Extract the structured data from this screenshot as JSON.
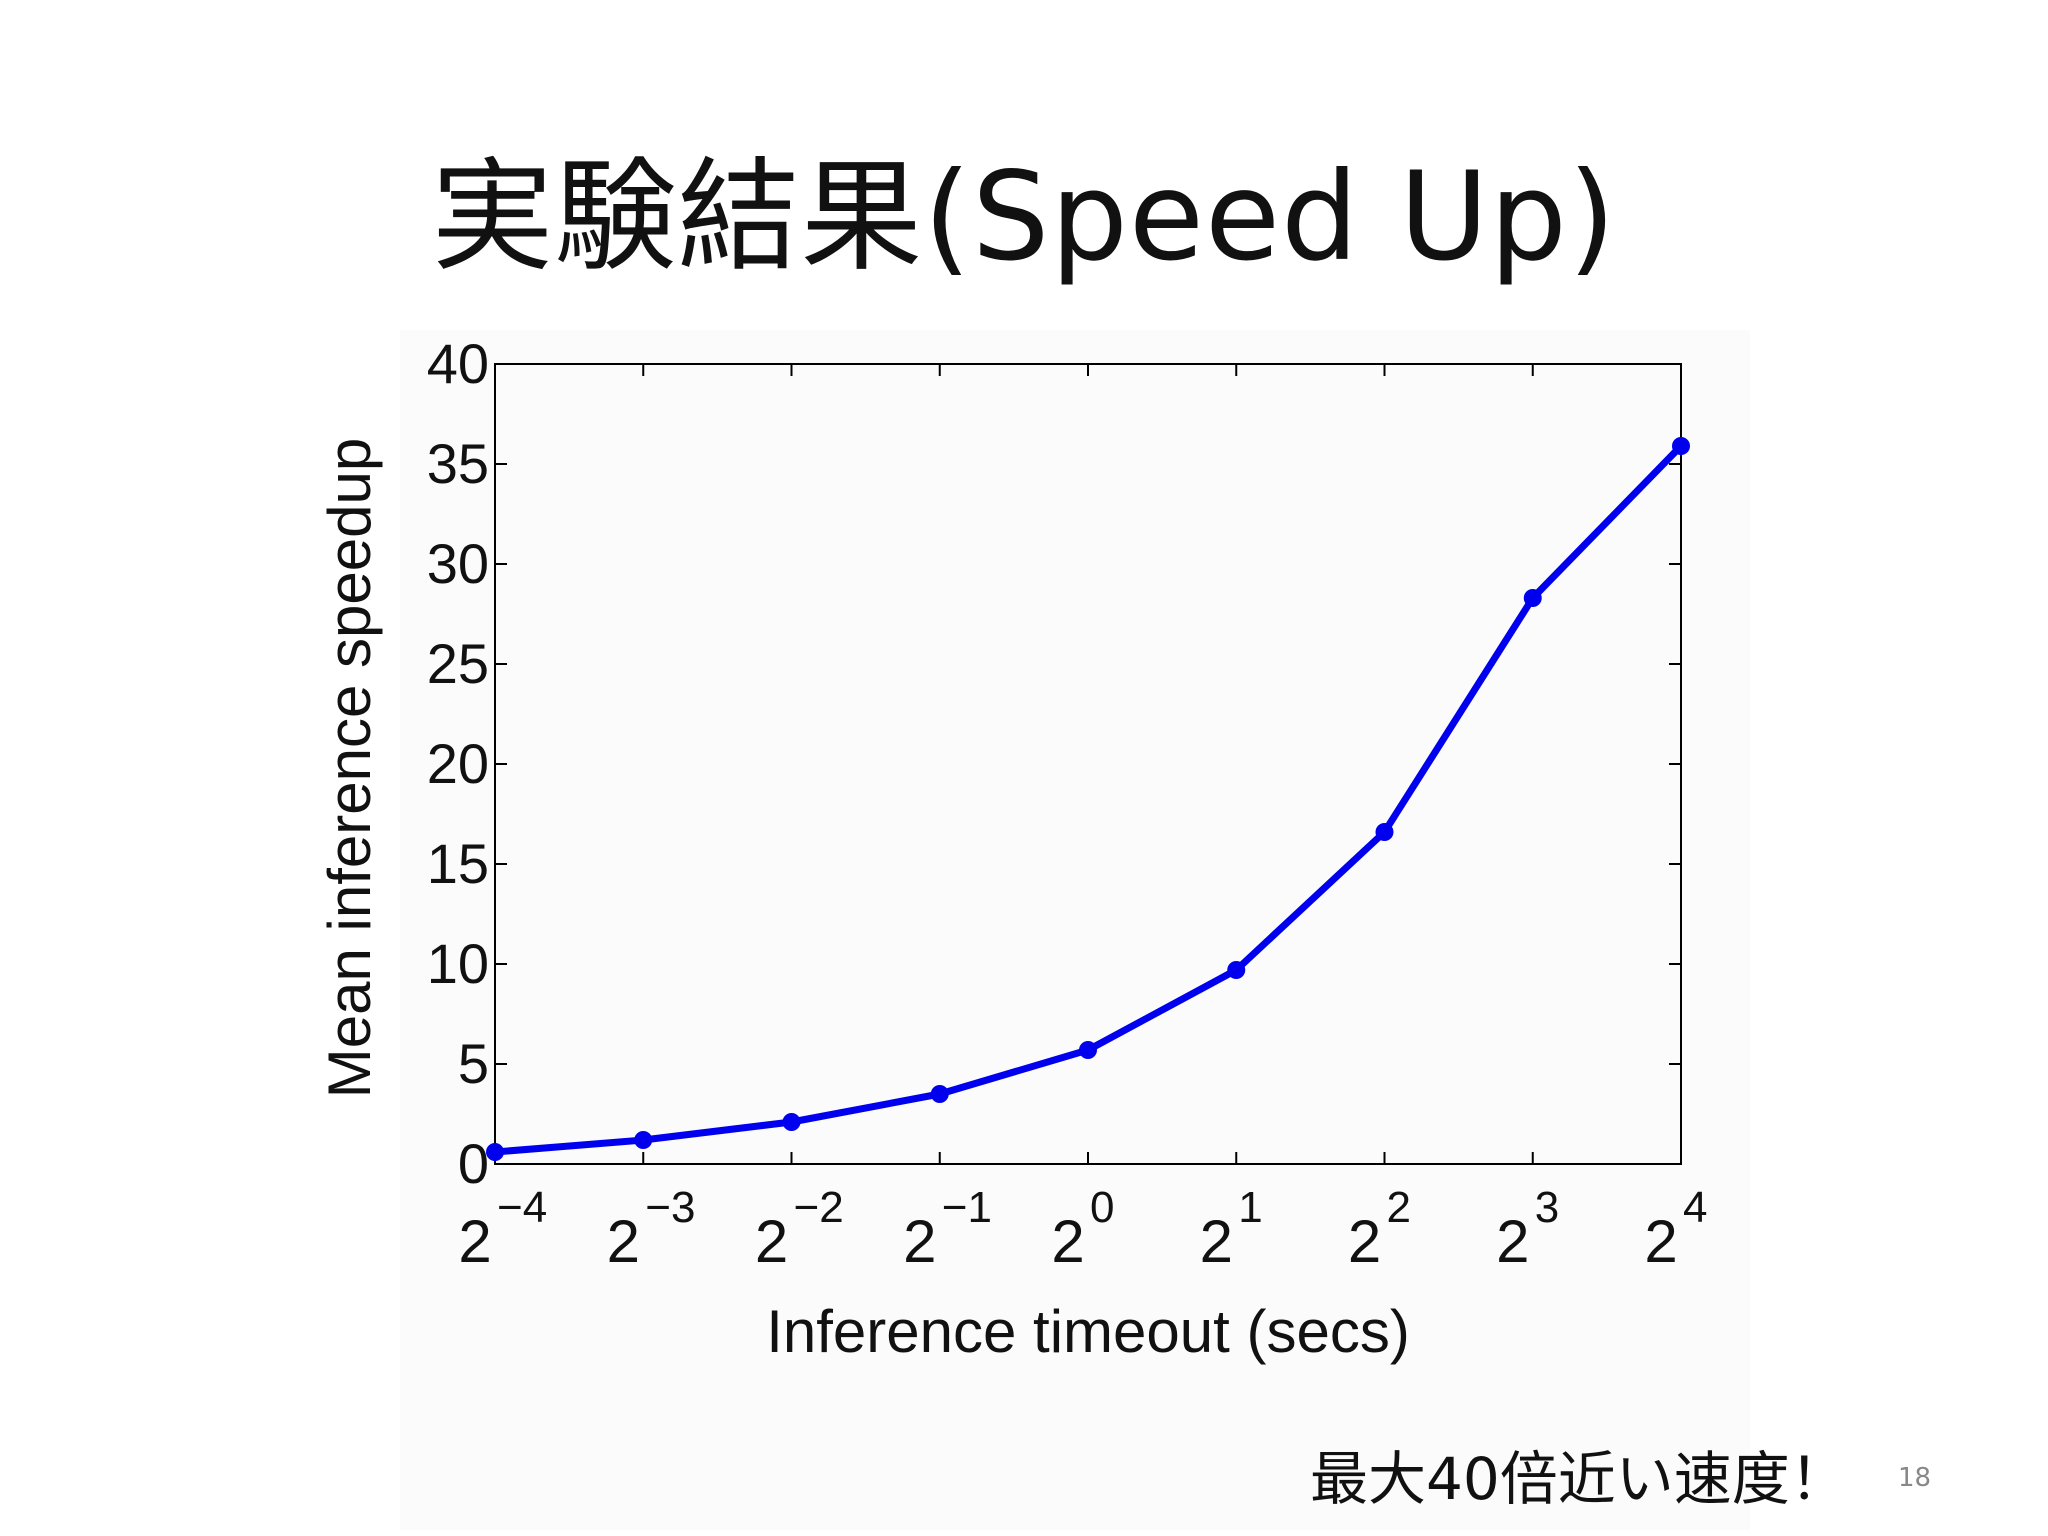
{
  "slide": {
    "title": "実験結果(Speed Up)",
    "note": "最大40倍近い速度！",
    "page_number": "18"
  },
  "chart_data": {
    "type": "line",
    "xlabel": "Inference timeout (secs)",
    "ylabel": "Mean inference speedup",
    "x_scale": "log2",
    "x": [
      0.0625,
      0.125,
      0.25,
      0.5,
      1,
      2,
      4,
      8,
      16
    ],
    "x_tick_labels": [
      {
        "base": "2",
        "exp": "−4"
      },
      {
        "base": "2",
        "exp": "−3"
      },
      {
        "base": "2",
        "exp": "−2"
      },
      {
        "base": "2",
        "exp": "−1"
      },
      {
        "base": "2",
        "exp": "0"
      },
      {
        "base": "2",
        "exp": "1"
      },
      {
        "base": "2",
        "exp": "2"
      },
      {
        "base": "2",
        "exp": "3"
      },
      {
        "base": "2",
        "exp": "4"
      }
    ],
    "y_ticks": [
      "0",
      "5",
      "10",
      "15",
      "20",
      "25",
      "30",
      "35",
      "40"
    ],
    "ylim": [
      0,
      40
    ],
    "xlim": [
      0.0625,
      16
    ],
    "grid": false,
    "series": [
      {
        "values": [
          0.6,
          1.2,
          2.1,
          3.5,
          5.7,
          9.7,
          16.6,
          28.3,
          35.9
        ],
        "color": "#0000ee"
      }
    ]
  }
}
